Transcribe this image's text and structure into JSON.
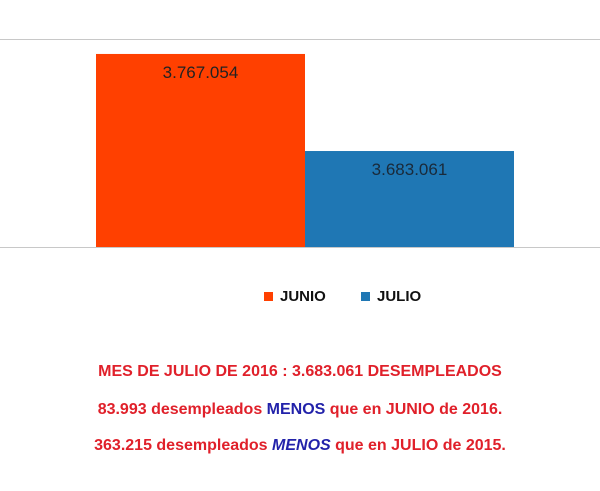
{
  "chart_data": {
    "type": "bar",
    "categories": [
      "JUNIO",
      "JULIO"
    ],
    "values": [
      3767054,
      3683061
    ],
    "value_labels": [
      "3.767.054",
      "3.683.061"
    ],
    "colors": [
      "#ff4000",
      "#1f77b4"
    ],
    "ylim": [
      3600000,
      3780000
    ],
    "legend_position": "bottom",
    "grid": false
  },
  "colors": {
    "caption_red": "#e0202a",
    "caption_blue": "#2222aa",
    "legend_text": "#111111",
    "axis_line": "#c8c8c8"
  },
  "caption": {
    "line1": "MES DE JULIO DE 2016 : 3.683.061 DESEMPLEADOS",
    "line2_a": "83.993 desempleados ",
    "line2_b": "MENOS",
    "line2_c": " que en JUNIO de 2016.",
    "line3_a": "363.215 desempleados ",
    "line3_b": "MENOS",
    "line3_c": " que en JULIO de 2015."
  }
}
